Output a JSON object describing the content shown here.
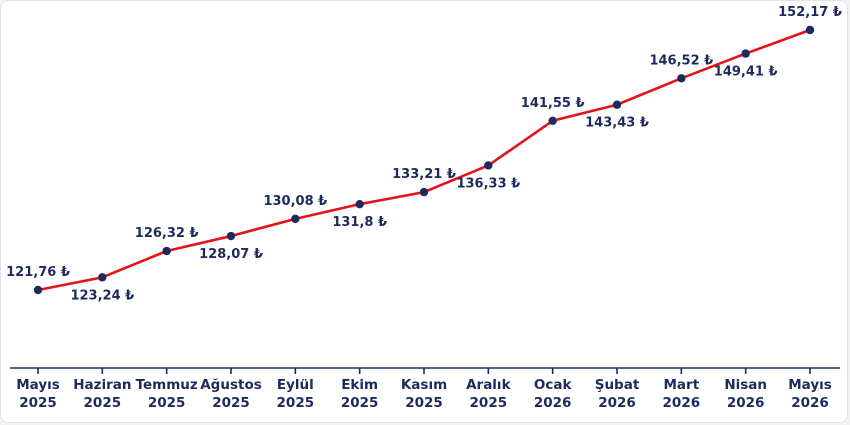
{
  "chart_data": {
    "type": "line",
    "categories": [
      [
        "Mayıs",
        "2025"
      ],
      [
        "Haziran",
        "2025"
      ],
      [
        "Temmuz",
        "2025"
      ],
      [
        "Ağustos",
        "2025"
      ],
      [
        "Eylül",
        "2025"
      ],
      [
        "Ekim",
        "2025"
      ],
      [
        "Kasım",
        "2025"
      ],
      [
        "Aralık",
        "2025"
      ],
      [
        "Ocak",
        "2026"
      ],
      [
        "Şubat",
        "2026"
      ],
      [
        "Mart",
        "2026"
      ],
      [
        "Nisan",
        "2026"
      ],
      [
        "Mayıs",
        "2026"
      ]
    ],
    "values": [
      121.76,
      123.24,
      126.32,
      128.07,
      130.08,
      131.8,
      133.21,
      136.33,
      141.55,
      143.43,
      146.52,
      149.41,
      152.17
    ],
    "data_labels": [
      "121,76 ₺",
      "123,24 ₺",
      "126,32 ₺",
      "128,07 ₺",
      "130,08 ₺",
      "131,8 ₺",
      "133,21 ₺",
      "136,33 ₺",
      "141,55 ₺",
      "143,43 ₺",
      "146,52 ₺",
      "149,41 ₺",
      "152,17 ₺"
    ],
    "label_side": [
      "above",
      "below",
      "above",
      "below",
      "above",
      "below",
      "above",
      "below",
      "above",
      "below",
      "above",
      "below",
      "above"
    ],
    "title": "",
    "xlabel": "",
    "ylabel": "",
    "ylim": [
      110,
      154
    ],
    "grid": false,
    "legend": "none",
    "colors": {
      "line": "#e4131b",
      "marker": "#1f2a5c",
      "text": "#1f2a5c",
      "axis": "#1f2a5c"
    }
  }
}
